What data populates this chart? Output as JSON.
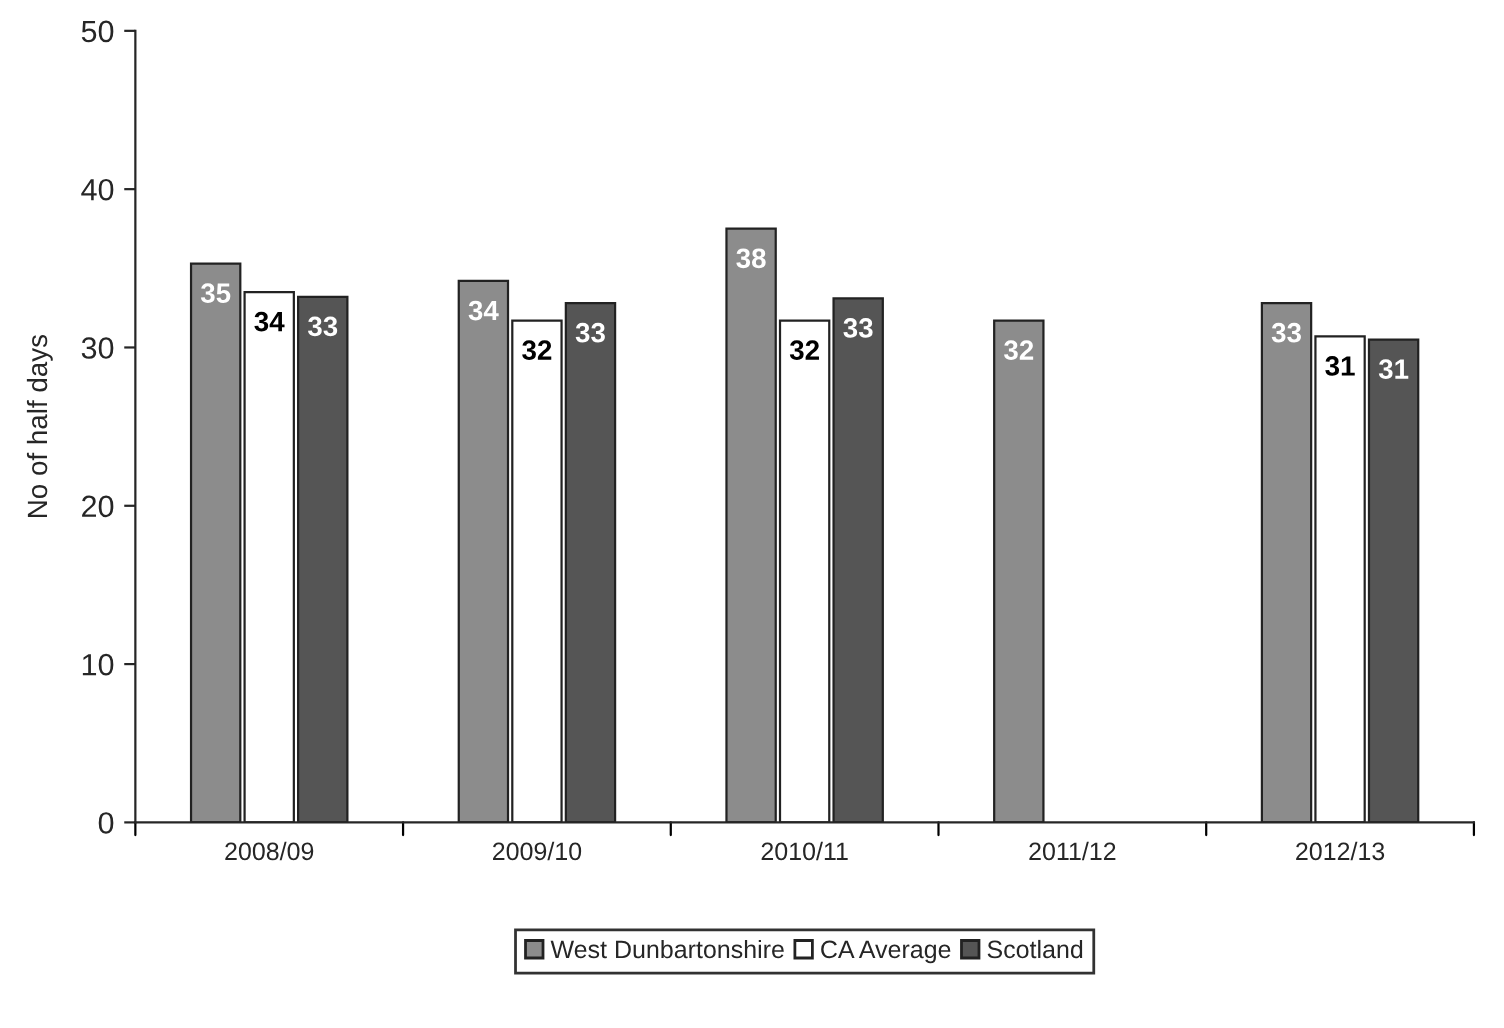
{
  "chart_data": {
    "type": "bar",
    "ylabel": "No of half days",
    "categories": [
      "2008/09",
      "2009/10",
      "2010/11",
      "2011/12",
      "2012/13"
    ],
    "series": [
      {
        "name": "West Dunbartonshire",
        "color": "#8c8c8c",
        "values": [
          35.3,
          34.2,
          37.5,
          31.7,
          32.8
        ],
        "value_labels": [
          "35",
          "34",
          "38",
          "32",
          "33"
        ]
      },
      {
        "name": "CA Average",
        "color": "#ffffff",
        "values": [
          33.5,
          31.7,
          31.7,
          null,
          30.7
        ],
        "value_labels": [
          "34",
          "32",
          "32",
          null,
          "31"
        ]
      },
      {
        "name": "Scotland",
        "color": "#555555",
        "values": [
          33.2,
          32.8,
          33.1,
          null,
          30.5
        ],
        "value_labels": [
          "33",
          "33",
          "33",
          null,
          "31"
        ]
      }
    ],
    "ylim": [
      0,
      50
    ],
    "yticks": [
      0,
      10,
      20,
      30,
      40,
      50
    ],
    "grid": false,
    "legend": "bottom"
  }
}
